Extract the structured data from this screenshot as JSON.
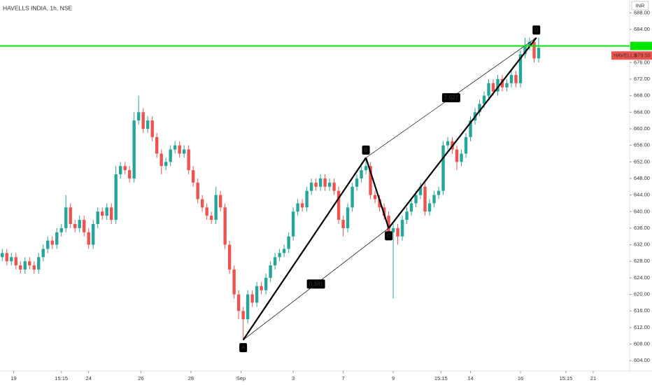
{
  "chart_data": {
    "type": "candlestick",
    "title": "HAVELLS INDIA, 1h, NSE",
    "currency": "INR",
    "up_color": "#26a69a",
    "down_color": "#ef5350",
    "grid": false,
    "xlim": [
      -0.5,
      137.7
    ],
    "ylim": [
      601.5,
      691.1
    ],
    "yticks": [
      {
        "value": 604,
        "label": "604.00"
      },
      {
        "value": 608,
        "label": "608.00"
      },
      {
        "value": 612,
        "label": "612.00"
      },
      {
        "value": 616,
        "label": "616.00"
      },
      {
        "value": 620,
        "label": "620.00"
      },
      {
        "value": 624,
        "label": "624.00"
      },
      {
        "value": 628,
        "label": "628.00"
      },
      {
        "value": 632,
        "label": "632.00"
      },
      {
        "value": 636,
        "label": "636.00"
      },
      {
        "value": 640,
        "label": "640.00"
      },
      {
        "value": 644,
        "label": "644.00"
      },
      {
        "value": 648,
        "label": "648.00"
      },
      {
        "value": 652,
        "label": "652.00"
      },
      {
        "value": 656,
        "label": "656.00"
      },
      {
        "value": 660,
        "label": "660.00"
      },
      {
        "value": 664,
        "label": "664.00"
      },
      {
        "value": 668,
        "label": "668.00"
      },
      {
        "value": 672,
        "label": "672.00"
      },
      {
        "value": 676,
        "label": "676.00"
      },
      {
        "value": 684,
        "label": "684.00"
      },
      {
        "value": 688,
        "label": "688.00"
      }
    ],
    "xticks": [
      {
        "value": 2.5,
        "label": "19"
      },
      {
        "value": 13,
        "label": "15:15"
      },
      {
        "value": 19,
        "label": "24"
      },
      {
        "value": 30.5,
        "label": "26"
      },
      {
        "value": 41.5,
        "label": "28"
      },
      {
        "value": 52.5,
        "label": "Sep"
      },
      {
        "value": 64,
        "label": "3"
      },
      {
        "value": 75,
        "label": "7"
      },
      {
        "value": 86,
        "label": "9"
      },
      {
        "value": 96.5,
        "label": "15:15"
      },
      {
        "value": 103,
        "label": "14"
      },
      {
        "value": 114,
        "label": "16"
      },
      {
        "value": 124,
        "label": "15:15"
      },
      {
        "value": 130,
        "label": "21"
      }
    ],
    "hlines": [
      {
        "value": 680,
        "color": "#00e600"
      }
    ],
    "last_label": {
      "name": "HAVELLS",
      "value": 679.55
    },
    "pattern": {
      "points": [
        {
          "label": "A",
          "x": 53,
          "y": 609
        },
        {
          "label": "B",
          "x": 80,
          "y": 653
        },
        {
          "label": "C",
          "x": 85,
          "y": 636
        },
        {
          "label": "D",
          "x": 117.5,
          "y": 682
        }
      ],
      "ratios": [
        0.381,
        2.627
      ]
    },
    "ohlc": [
      [
        629,
        631,
        628,
        630
      ],
      [
        630,
        631,
        627,
        628
      ],
      [
        628,
        630,
        627,
        629
      ],
      [
        629,
        630,
        626,
        627
      ],
      [
        627,
        628,
        625,
        626
      ],
      [
        626,
        629,
        625,
        628
      ],
      [
        628,
        629,
        626,
        627
      ],
      [
        627,
        628,
        625,
        626
      ],
      [
        626,
        630,
        625,
        629
      ],
      [
        629,
        632,
        628,
        631
      ],
      [
        631,
        634,
        630,
        633
      ],
      [
        633,
        634,
        631,
        632
      ],
      [
        632,
        636,
        631,
        635
      ],
      [
        635,
        637,
        634,
        636
      ],
      [
        636,
        644,
        635,
        641
      ],
      [
        641,
        642,
        636,
        637
      ],
      [
        637,
        638,
        635,
        636
      ],
      [
        636,
        639,
        635,
        638
      ],
      [
        638,
        639,
        634,
        635
      ],
      [
        635,
        636,
        631,
        632
      ],
      [
        632,
        638,
        631,
        637
      ],
      [
        637,
        641,
        636,
        640
      ],
      [
        640,
        641,
        638,
        639
      ],
      [
        639,
        642,
        638,
        641
      ],
      [
        641,
        642,
        637,
        638
      ],
      [
        638,
        651,
        637,
        649
      ],
      [
        649,
        652,
        648,
        651
      ],
      [
        651,
        652,
        649,
        650
      ],
      [
        650,
        651,
        647,
        648
      ],
      [
        648,
        664,
        647,
        662
      ],
      [
        662,
        668,
        661,
        664
      ],
      [
        664,
        665,
        659,
        660
      ],
      [
        660,
        663,
        659,
        662
      ],
      [
        662,
        663,
        657,
        658
      ],
      [
        658,
        659,
        653,
        654
      ],
      [
        654,
        655,
        649,
        651
      ],
      [
        651,
        653,
        650,
        652
      ],
      [
        652,
        656,
        651,
        655
      ],
      [
        655,
        657,
        654,
        656
      ],
      [
        656,
        657,
        653,
        654
      ],
      [
        654,
        656,
        653,
        655
      ],
      [
        655,
        656,
        649,
        650
      ],
      [
        650,
        651,
        646,
        647
      ],
      [
        647,
        648,
        642,
        643
      ],
      [
        643,
        644,
        640,
        641
      ],
      [
        641,
        642,
        638,
        639
      ],
      [
        639,
        640,
        637,
        638
      ],
      [
        638,
        646,
        637,
        644
      ],
      [
        644,
        645,
        640,
        641
      ],
      [
        641,
        642,
        631,
        632
      ],
      [
        632,
        633,
        625,
        626
      ],
      [
        626,
        627,
        619,
        620
      ],
      [
        620,
        621,
        614,
        616
      ],
      [
        616,
        617,
        609,
        614
      ],
      [
        614,
        621,
        613,
        620
      ],
      [
        620,
        621,
        617,
        618
      ],
      [
        618,
        623,
        617,
        622
      ],
      [
        622,
        623,
        620,
        621
      ],
      [
        621,
        625,
        620,
        624
      ],
      [
        624,
        628,
        623,
        627
      ],
      [
        627,
        630,
        626,
        629
      ],
      [
        629,
        631,
        628,
        630
      ],
      [
        630,
        632,
        629,
        631
      ],
      [
        631,
        635,
        630,
        634
      ],
      [
        634,
        641,
        633,
        640
      ],
      [
        640,
        643,
        639,
        642
      ],
      [
        642,
        643,
        640,
        641
      ],
      [
        641,
        646,
        640,
        645
      ],
      [
        645,
        648,
        644,
        647
      ],
      [
        647,
        648,
        645,
        646
      ],
      [
        646,
        649,
        645,
        648
      ],
      [
        648,
        649,
        645,
        646
      ],
      [
        646,
        648,
        645,
        647
      ],
      [
        647,
        648,
        644,
        645
      ],
      [
        645,
        646,
        637,
        638
      ],
      [
        638,
        639,
        634,
        636
      ],
      [
        636,
        642,
        635,
        641
      ],
      [
        641,
        647,
        640,
        646
      ],
      [
        646,
        649,
        645,
        648
      ],
      [
        648,
        651,
        647,
        650
      ],
      [
        650,
        653,
        649,
        651
      ],
      [
        651,
        652,
        643,
        644
      ],
      [
        644,
        645,
        642,
        643
      ],
      [
        643,
        644,
        640,
        641
      ],
      [
        641,
        642,
        638,
        639
      ],
      [
        639,
        640,
        634,
        635
      ],
      [
        635,
        637,
        619,
        636
      ],
      [
        636,
        637,
        632,
        634
      ],
      [
        634,
        639,
        633,
        638
      ],
      [
        638,
        641,
        637,
        640
      ],
      [
        640,
        643,
        639,
        642
      ],
      [
        642,
        645,
        641,
        644
      ],
      [
        644,
        647,
        643,
        646
      ],
      [
        646,
        647,
        639,
        640
      ],
      [
        640,
        643,
        639,
        642
      ],
      [
        642,
        645,
        641,
        644
      ],
      [
        644,
        646,
        643,
        645
      ],
      [
        645,
        657,
        644,
        656
      ],
      [
        656,
        658,
        655,
        657
      ],
      [
        657,
        658,
        654,
        655
      ],
      [
        655,
        656,
        650,
        652
      ],
      [
        652,
        655,
        651,
        654
      ],
      [
        654,
        659,
        653,
        658
      ],
      [
        658,
        663,
        657,
        662
      ],
      [
        662,
        665,
        661,
        664
      ],
      [
        664,
        667,
        663,
        666
      ],
      [
        666,
        669,
        665,
        668
      ],
      [
        668,
        672,
        667,
        671
      ],
      [
        671,
        672,
        668,
        669
      ],
      [
        669,
        673,
        668,
        672
      ],
      [
        672,
        673,
        669,
        670
      ],
      [
        670,
        672,
        669,
        671
      ],
      [
        671,
        674,
        670,
        673
      ],
      [
        673,
        674,
        670,
        671
      ],
      [
        671,
        679,
        670,
        678
      ],
      [
        678,
        682,
        677,
        680
      ],
      [
        680,
        682,
        679,
        681
      ],
      [
        681,
        682,
        676,
        677
      ],
      [
        677,
        682,
        676,
        679.55
      ]
    ]
  }
}
